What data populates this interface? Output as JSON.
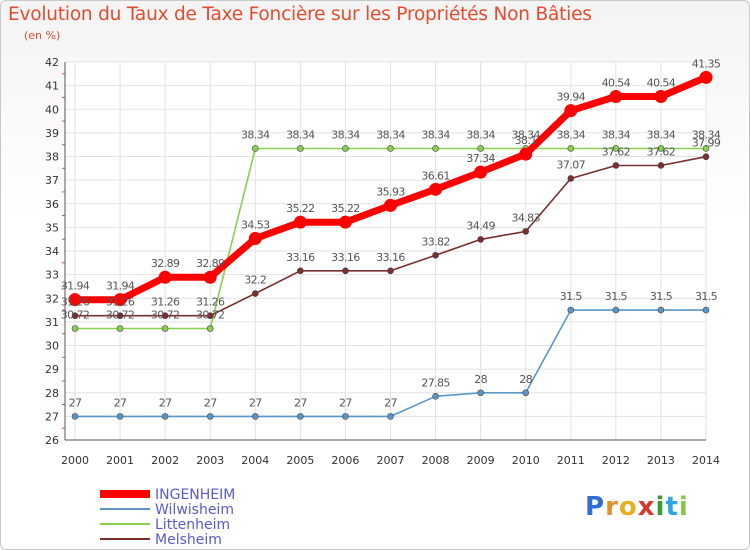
{
  "title": "Evolution du Taux de Taxe Foncière sur les Propriétés Non Bâties",
  "unit": "(en %)",
  "logo": {
    "letters": [
      "P",
      "r",
      "o",
      "x",
      "i",
      "t",
      "i"
    ],
    "colors": [
      "#2e6fcf",
      "#e4902a",
      "#e8b021",
      "#d6382a",
      "#3a9b3a",
      "#2ea7dd",
      "#8bc34a"
    ]
  },
  "chart_data": {
    "type": "line",
    "x": [
      "2000",
      "2001",
      "2002",
      "2003",
      "2004",
      "2005",
      "2006",
      "2007",
      "2008",
      "2009",
      "2010",
      "2011",
      "2012",
      "2013",
      "2014"
    ],
    "ylim": [
      26,
      42
    ],
    "yticks": [
      "26",
      "27",
      "28",
      "29",
      "30",
      "31",
      "32",
      "33",
      "34",
      "35",
      "36",
      "37",
      "38",
      "39",
      "40",
      "41",
      "42"
    ],
    "grid": true,
    "legend_position": "bottom-left",
    "series": [
      {
        "name": "INGENHEIM",
        "color": "#ff0000",
        "values": [
          31.94,
          31.94,
          32.89,
          32.89,
          34.53,
          35.22,
          35.22,
          35.93,
          36.61,
          37.34,
          38.1,
          39.94,
          40.54,
          40.54,
          41.35
        ],
        "labels": [
          "31.94",
          "31.94",
          "32.89",
          "32.89",
          "34.53",
          "35.22",
          "35.22",
          "35.93",
          "36.61",
          "37.34",
          "38.1",
          "39.94",
          "40.54",
          "40.54",
          "41.35"
        ]
      },
      {
        "name": "Wilwisheim",
        "color": "#5b96c8",
        "values": [
          27,
          27,
          27,
          27,
          27,
          27,
          27,
          27,
          27.85,
          28,
          28,
          31.5,
          31.5,
          31.5,
          31.5
        ],
        "labels": [
          "27",
          "27",
          "27",
          "27",
          "27",
          "27",
          "27",
          "27",
          "27.85",
          "28",
          "28",
          "31.5",
          "31.5",
          "31.5",
          "31.5"
        ]
      },
      {
        "name": "Littenheim",
        "color": "#88d050",
        "values": [
          30.72,
          30.72,
          30.72,
          30.72,
          38.34,
          38.34,
          38.34,
          38.34,
          38.34,
          38.34,
          38.34,
          38.34,
          38.34,
          38.34,
          38.34
        ],
        "labels": [
          "30.72",
          "30.72",
          "30.72",
          "30.72",
          "38.34",
          "38.34",
          "38.34",
          "38.34",
          "38.34",
          "38.34",
          "38.34",
          "38.34",
          "38.34",
          "38.34",
          "38.34"
        ]
      },
      {
        "name": "Melsheim",
        "color": "#7a2e2e",
        "values": [
          31.26,
          31.26,
          31.26,
          31.26,
          32.2,
          33.16,
          33.16,
          33.16,
          33.82,
          34.49,
          34.83,
          37.07,
          37.62,
          37.62,
          37.99
        ],
        "labels": [
          "31.26",
          "31.26",
          "31.26",
          "31.26",
          "32.2",
          "33.16",
          "33.16",
          "33.16",
          "33.82",
          "34.49",
          "34.83",
          "37.07",
          "37.62",
          "37.62",
          "37.99"
        ]
      }
    ]
  }
}
